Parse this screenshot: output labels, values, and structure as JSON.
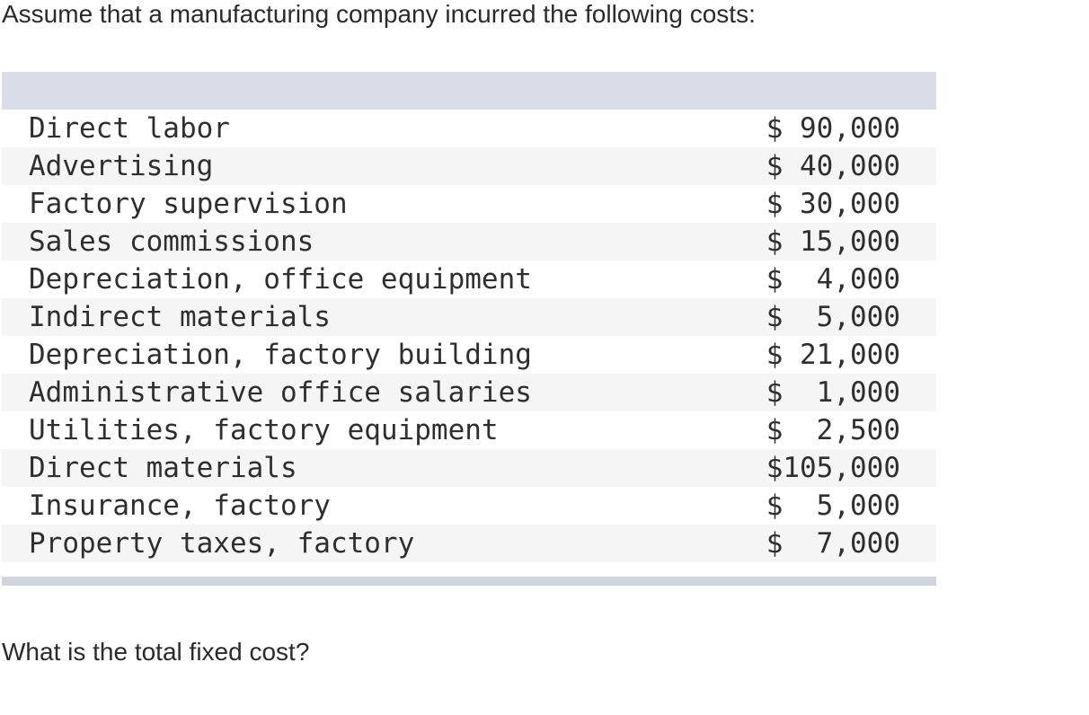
{
  "question": {
    "intro": "Assume that a manufacturing company incurred the following costs:",
    "prompt": "What is the total fixed cost?"
  },
  "costs": [
    {
      "label": "Direct labor",
      "value": "$ 90,000"
    },
    {
      "label": "Advertising",
      "value": "$ 40,000"
    },
    {
      "label": "Factory supervision",
      "value": "$ 30,000"
    },
    {
      "label": "Sales commissions",
      "value": "$ 15,000"
    },
    {
      "label": "Depreciation, office equipment",
      "value": "$  4,000"
    },
    {
      "label": "Indirect materials",
      "value": "$  5,000"
    },
    {
      "label": "Depreciation, factory building",
      "value": "$ 21,000"
    },
    {
      "label": "Administrative office salaries",
      "value": "$  1,000"
    },
    {
      "label": "Utilities, factory equipment",
      "value": "$  2,500"
    },
    {
      "label": "Direct materials",
      "value": "$105,000"
    },
    {
      "label": "Insurance, factory",
      "value": "$  5,000"
    },
    {
      "label": "Property taxes, factory",
      "value": "$  7,000"
    }
  ]
}
